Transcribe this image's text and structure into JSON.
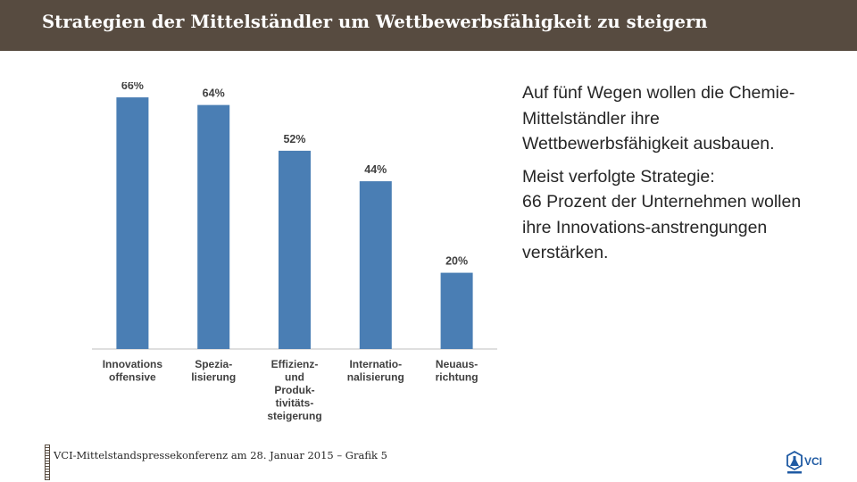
{
  "header": {
    "title": "Strategien der Mittelständler um Wettbewerbsfähigkeit zu steigern"
  },
  "text": {
    "paragraph1": "Auf fünf Wegen wollen die Chemie-Mittelständler ihre Wettbewerbsfähigkeit ausbauen.",
    "paragraph2_line1": "Meist verfolgte Strategie:",
    "paragraph2_line2": "66 Prozent der Unternehmen wollen ihre Innovations-anstrengungen verstärken."
  },
  "footer": {
    "text": "VCI-Mittelstandspressekonferenz am 28. Januar 2015 – Grafik 5"
  },
  "logo": {
    "text": "VCI",
    "icon": "flask-hexagon-icon"
  },
  "colors": {
    "header_bg": "#574b40",
    "bar": "#4a7eb4",
    "logo_blue": "#1f5aa3"
  },
  "chart_data": {
    "type": "bar",
    "categories": [
      [
        "Innovations",
        "offensive"
      ],
      [
        "Spezia-",
        "lisierung"
      ],
      [
        "Effizienz-",
        "und",
        "Produk-",
        "tivitäts-",
        "steigerung"
      ],
      [
        "Internatio-",
        "nalisierung"
      ],
      [
        "Neuaus-",
        "richtung"
      ]
    ],
    "values": [
      66,
      64,
      52,
      44,
      20
    ],
    "value_labels": [
      "66%",
      "64%",
      "52%",
      "44%",
      "20%"
    ],
    "unit": "%",
    "ylim": [
      0,
      70
    ],
    "grid": false,
    "legend": false
  }
}
